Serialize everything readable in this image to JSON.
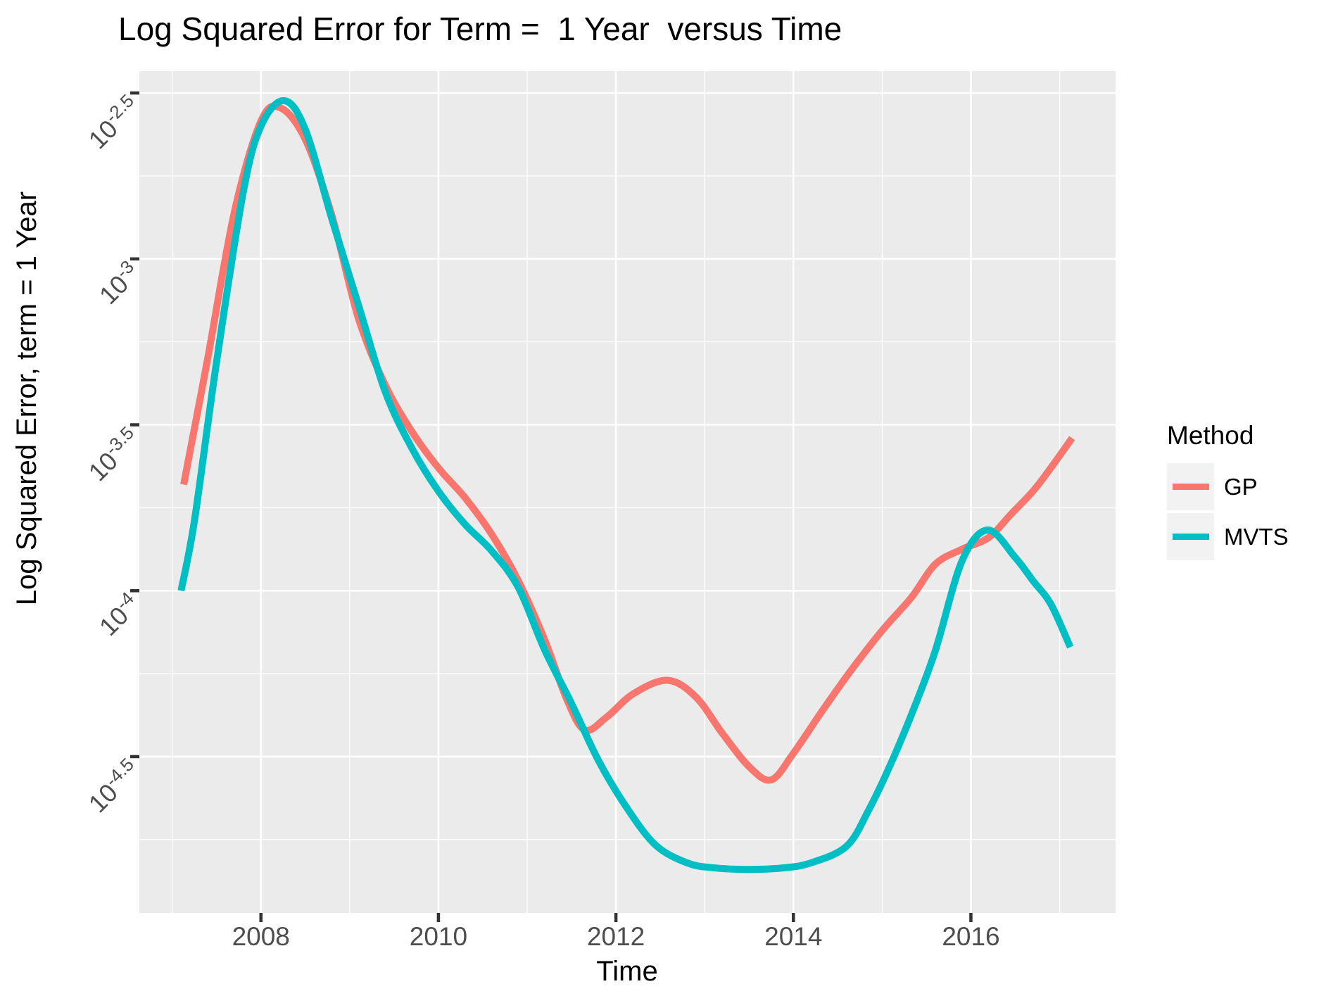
{
  "chart_data": {
    "type": "line",
    "title": "Log Squared Error for Term =  1 Year  versus Time",
    "xlabel": "Time",
    "ylabel": "Log Squared Error, term = 1 Year",
    "legend_title": "Method",
    "legend_position": "right",
    "grid": "on",
    "panel_background": "#EBEBEB",
    "gridline_color": "#FFFFFF",
    "tick_label_color": "#4D4D4D",
    "tick_mark_color": "#333333",
    "x_range": [
      2006.63,
      2017.63
    ],
    "y_log_range": [
      -4.971,
      -2.434
    ],
    "x_ticks": [
      {
        "value": 2008,
        "label": "2008"
      },
      {
        "value": 2010,
        "label": "2010"
      },
      {
        "value": 2012,
        "label": "2012"
      },
      {
        "value": 2014,
        "label": "2014"
      },
      {
        "value": 2016,
        "label": "2016"
      }
    ],
    "x_minor_ticks": [
      2007,
      2009,
      2011,
      2013,
      2015,
      2017
    ],
    "y_ticks": [
      {
        "value": -2.5,
        "label": "10^-2.5"
      },
      {
        "value": -3,
        "label": "10^-3"
      },
      {
        "value": -3.5,
        "label": "10^-3.5"
      },
      {
        "value": -4,
        "label": "10^-4"
      },
      {
        "value": -4.5,
        "label": "10^-4.5"
      }
    ],
    "y_minor_ticks": [
      -2.75,
      -3.25,
      -3.75,
      -4.25,
      -4.75
    ],
    "series": [
      {
        "name": "GP",
        "color": "#F8766D",
        "points": [
          [
            2007.13,
            -3.68
          ],
          [
            2007.4,
            -3.3
          ],
          [
            2007.7,
            -2.86
          ],
          [
            2008.0,
            -2.585
          ],
          [
            2008.22,
            -2.545
          ],
          [
            2008.5,
            -2.64
          ],
          [
            2008.8,
            -2.87
          ],
          [
            2009.1,
            -3.18
          ],
          [
            2009.4,
            -3.38
          ],
          [
            2009.7,
            -3.52
          ],
          [
            2010.0,
            -3.63
          ],
          [
            2010.3,
            -3.72
          ],
          [
            2010.6,
            -3.83
          ],
          [
            2010.9,
            -3.97
          ],
          [
            2011.2,
            -4.15
          ],
          [
            2011.45,
            -4.33
          ],
          [
            2011.65,
            -4.42
          ],
          [
            2011.9,
            -4.38
          ],
          [
            2012.2,
            -4.31
          ],
          [
            2012.58,
            -4.27
          ],
          [
            2012.9,
            -4.32
          ],
          [
            2013.2,
            -4.43
          ],
          [
            2013.5,
            -4.53
          ],
          [
            2013.75,
            -4.57
          ],
          [
            2014.0,
            -4.49
          ],
          [
            2014.33,
            -4.36
          ],
          [
            2014.65,
            -4.24
          ],
          [
            2015.0,
            -4.12
          ],
          [
            2015.33,
            -4.02
          ],
          [
            2015.6,
            -3.92
          ],
          [
            2015.9,
            -3.875
          ],
          [
            2016.2,
            -3.84
          ],
          [
            2016.45,
            -3.77
          ],
          [
            2016.7,
            -3.7
          ],
          [
            2016.9,
            -3.63
          ],
          [
            2017.14,
            -3.54
          ]
        ]
      },
      {
        "name": "MVTS",
        "color": "#00BFC4",
        "points": [
          [
            2007.1,
            -4.0
          ],
          [
            2007.25,
            -3.79
          ],
          [
            2007.5,
            -3.31
          ],
          [
            2007.8,
            -2.8
          ],
          [
            2008.0,
            -2.6
          ],
          [
            2008.26,
            -2.523
          ],
          [
            2008.5,
            -2.61
          ],
          [
            2008.8,
            -2.88
          ],
          [
            2009.1,
            -3.14
          ],
          [
            2009.4,
            -3.4
          ],
          [
            2009.7,
            -3.57
          ],
          [
            2010.0,
            -3.7
          ],
          [
            2010.3,
            -3.8
          ],
          [
            2010.6,
            -3.88
          ],
          [
            2010.9,
            -3.99
          ],
          [
            2011.2,
            -4.18
          ],
          [
            2011.5,
            -4.34
          ],
          [
            2011.8,
            -4.51
          ],
          [
            2012.1,
            -4.645
          ],
          [
            2012.44,
            -4.765
          ],
          [
            2012.8,
            -4.82
          ],
          [
            2013.1,
            -4.835
          ],
          [
            2013.5,
            -4.84
          ],
          [
            2013.9,
            -4.835
          ],
          [
            2014.2,
            -4.82
          ],
          [
            2014.6,
            -4.77
          ],
          [
            2014.85,
            -4.66
          ],
          [
            2015.1,
            -4.52
          ],
          [
            2015.35,
            -4.36
          ],
          [
            2015.6,
            -4.18
          ],
          [
            2015.9,
            -3.91
          ],
          [
            2016.19,
            -3.817
          ],
          [
            2016.5,
            -3.9
          ],
          [
            2016.7,
            -3.97
          ],
          [
            2016.9,
            -4.04
          ],
          [
            2017.12,
            -4.17
          ]
        ]
      }
    ]
  }
}
